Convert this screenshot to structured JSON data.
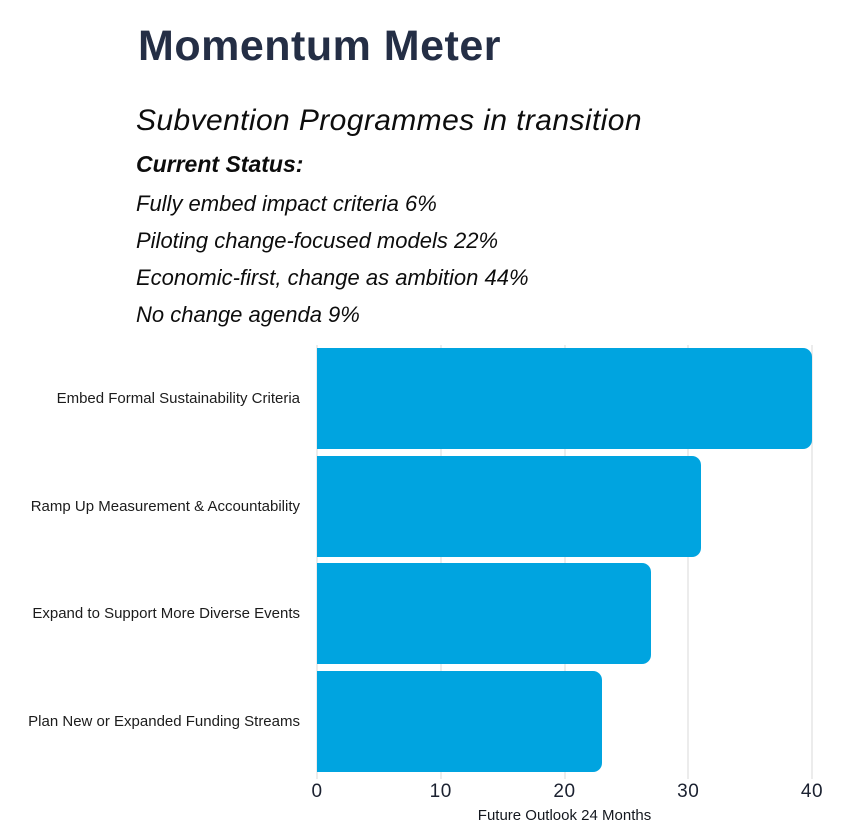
{
  "header": {
    "title": "Momentum Meter",
    "subtitle": "Subvention Programmes in transition",
    "status_heading": "Current Status:",
    "status_lines": [
      "Fully embed impact criteria 6%",
      "Piloting change-focused models 22%",
      "Economic-first, change as ambition 44%",
      "No change agenda 9%"
    ]
  },
  "chart_data": {
    "type": "bar",
    "orientation": "horizontal",
    "title": "Momentum Meter",
    "subtitle": "Subvention Programmes in transition",
    "categories": [
      "Embed Formal Sustainability Criteria",
      "Ramp Up Measurement & Accountability",
      "Expand to Support More Diverse Events",
      "Plan New or Expanded Funding Streams"
    ],
    "values": [
      40,
      31,
      27,
      23
    ],
    "xlabel": "Future Outlook 24 Months",
    "ylabel": "",
    "xlim": [
      0,
      40
    ],
    "xticks": [
      0,
      10,
      20,
      30,
      40
    ],
    "grid": true,
    "legend_position": "none",
    "bar_color": "#00a4e0",
    "gridline_color": "#d8d8d8"
  },
  "colors": {
    "title": "#242e45",
    "body_text": "#0d0d0d",
    "bar": "#00a4e0",
    "gridline": "#d8d8d8",
    "background": "#ffffff"
  }
}
